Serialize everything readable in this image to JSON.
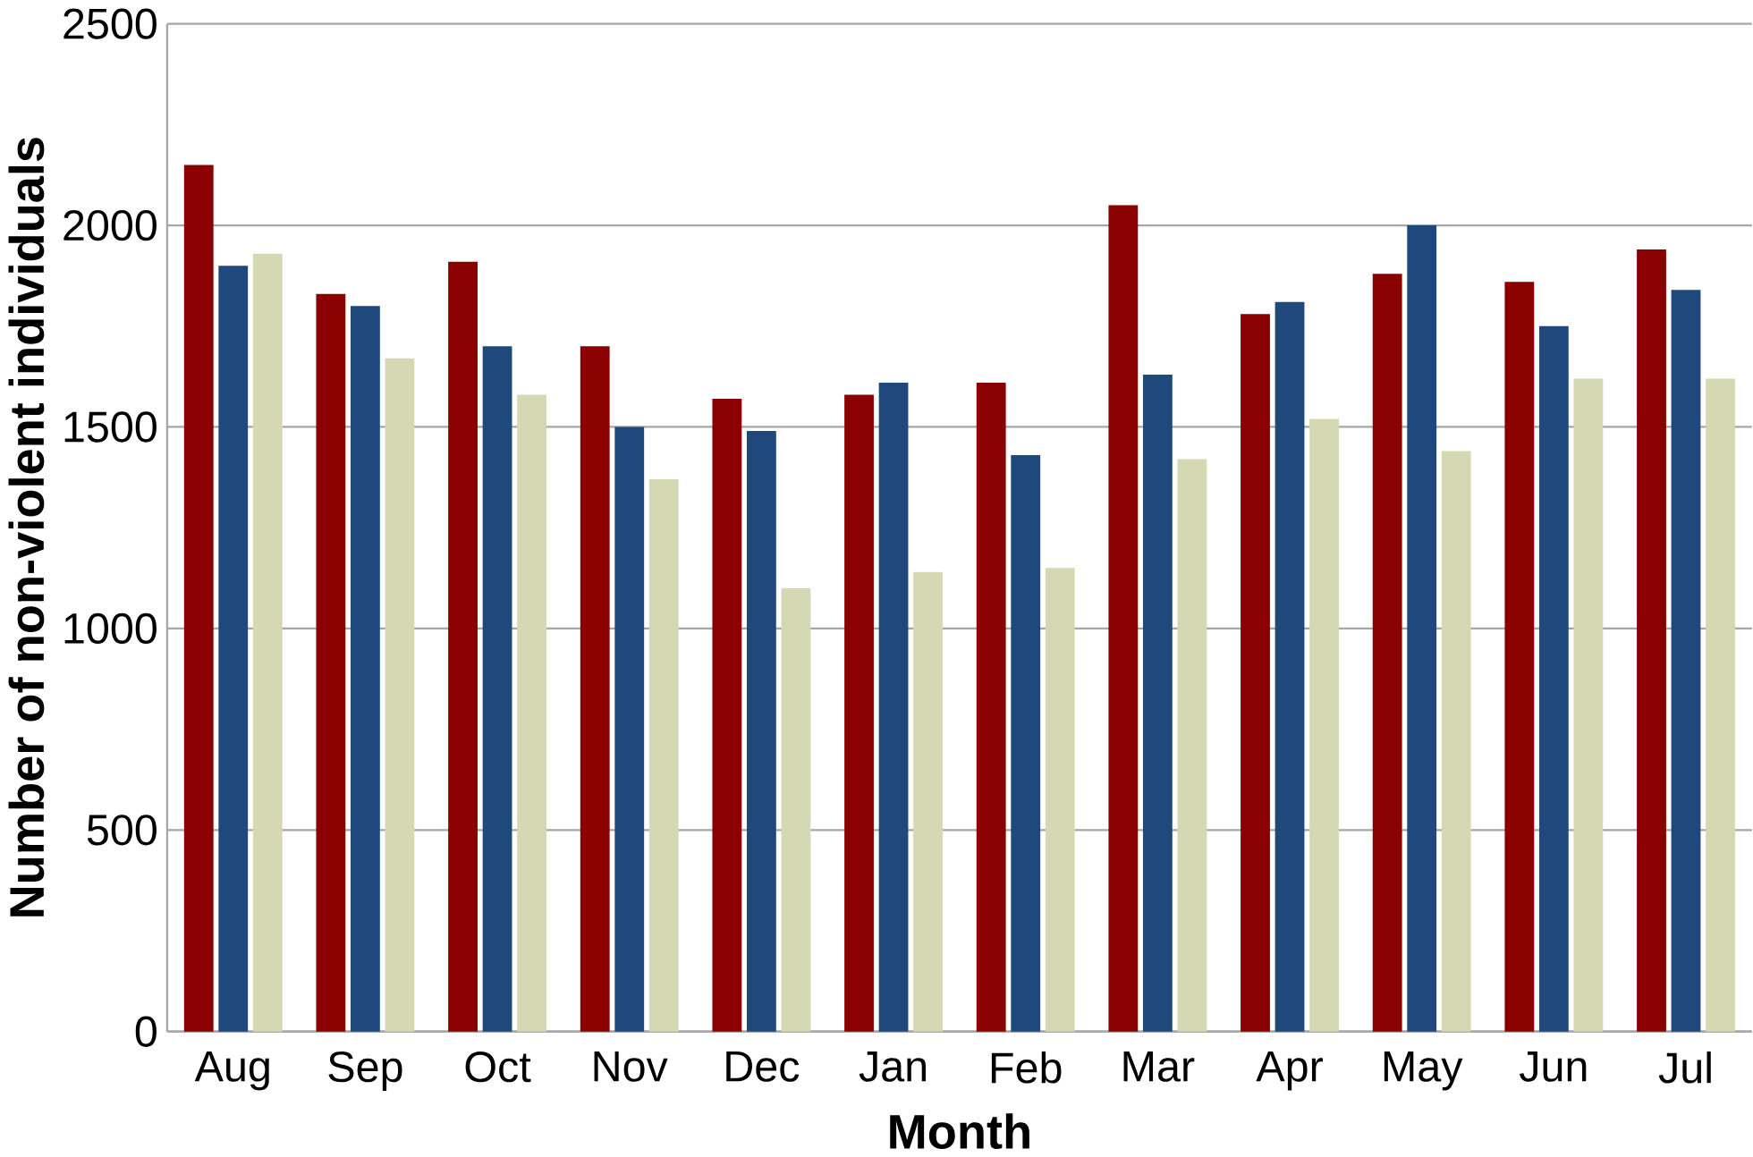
{
  "chart_data": {
    "type": "bar",
    "xlabel": "Month",
    "ylabel": "Number of non-violent individuals",
    "categories": [
      "Aug",
      "Sep",
      "Oct",
      "Nov",
      "Dec",
      "Jan",
      "Feb",
      "Mar",
      "Apr",
      "May",
      "Jun",
      "Jul"
    ],
    "series": [
      {
        "color": "#8b0000",
        "values": [
          2150,
          1830,
          1910,
          1700,
          1570,
          1580,
          1610,
          2050,
          1780,
          1880,
          1860,
          1940
        ]
      },
      {
        "color": "#1f497d",
        "values": [
          1900,
          1800,
          1700,
          1500,
          1490,
          1610,
          1430,
          1630,
          1810,
          2000,
          1750,
          1840
        ]
      },
      {
        "color": "#d4d9b4",
        "values": [
          1930,
          1670,
          1580,
          1370,
          1100,
          1140,
          1150,
          1420,
          1520,
          1440,
          1620,
          1620
        ]
      }
    ],
    "ylim": [
      0,
      2500
    ],
    "yticks": [
      0,
      500,
      1000,
      1500,
      2000,
      2500
    ],
    "grid": "y"
  }
}
